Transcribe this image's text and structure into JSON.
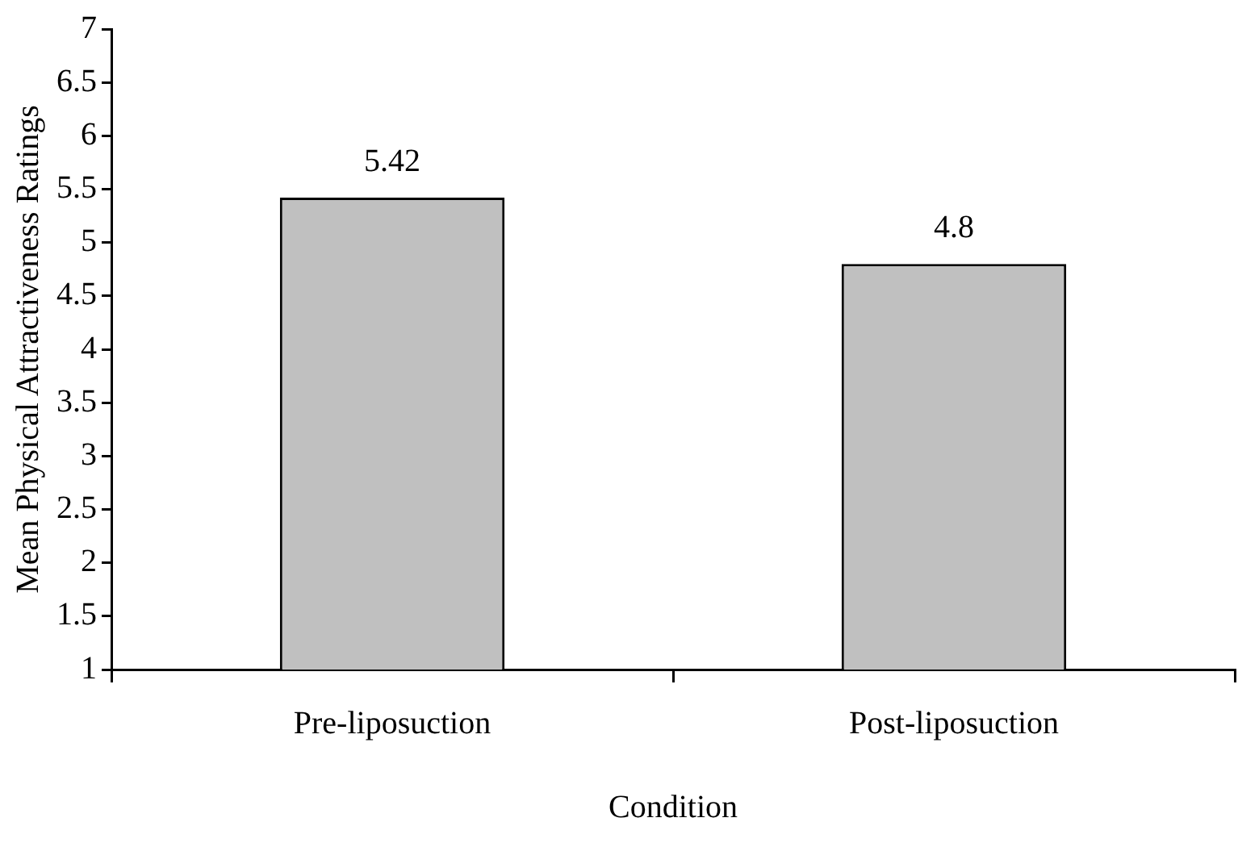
{
  "chart_data": {
    "type": "bar",
    "categories": [
      "Pre-liposuction",
      "Post-liposuction"
    ],
    "values": [
      5.42,
      4.8
    ],
    "color": "#c0c0c0",
    "xlabel": "Condition",
    "ylabel": "Mean Physical Attractiveness Ratings",
    "ylim": [
      1,
      7
    ],
    "yticks": [
      1,
      1.5,
      2,
      2.5,
      3,
      3.5,
      4,
      4.5,
      5,
      5.5,
      6,
      6.5,
      7
    ],
    "data_labels": true,
    "grid": false,
    "legend": false
  }
}
